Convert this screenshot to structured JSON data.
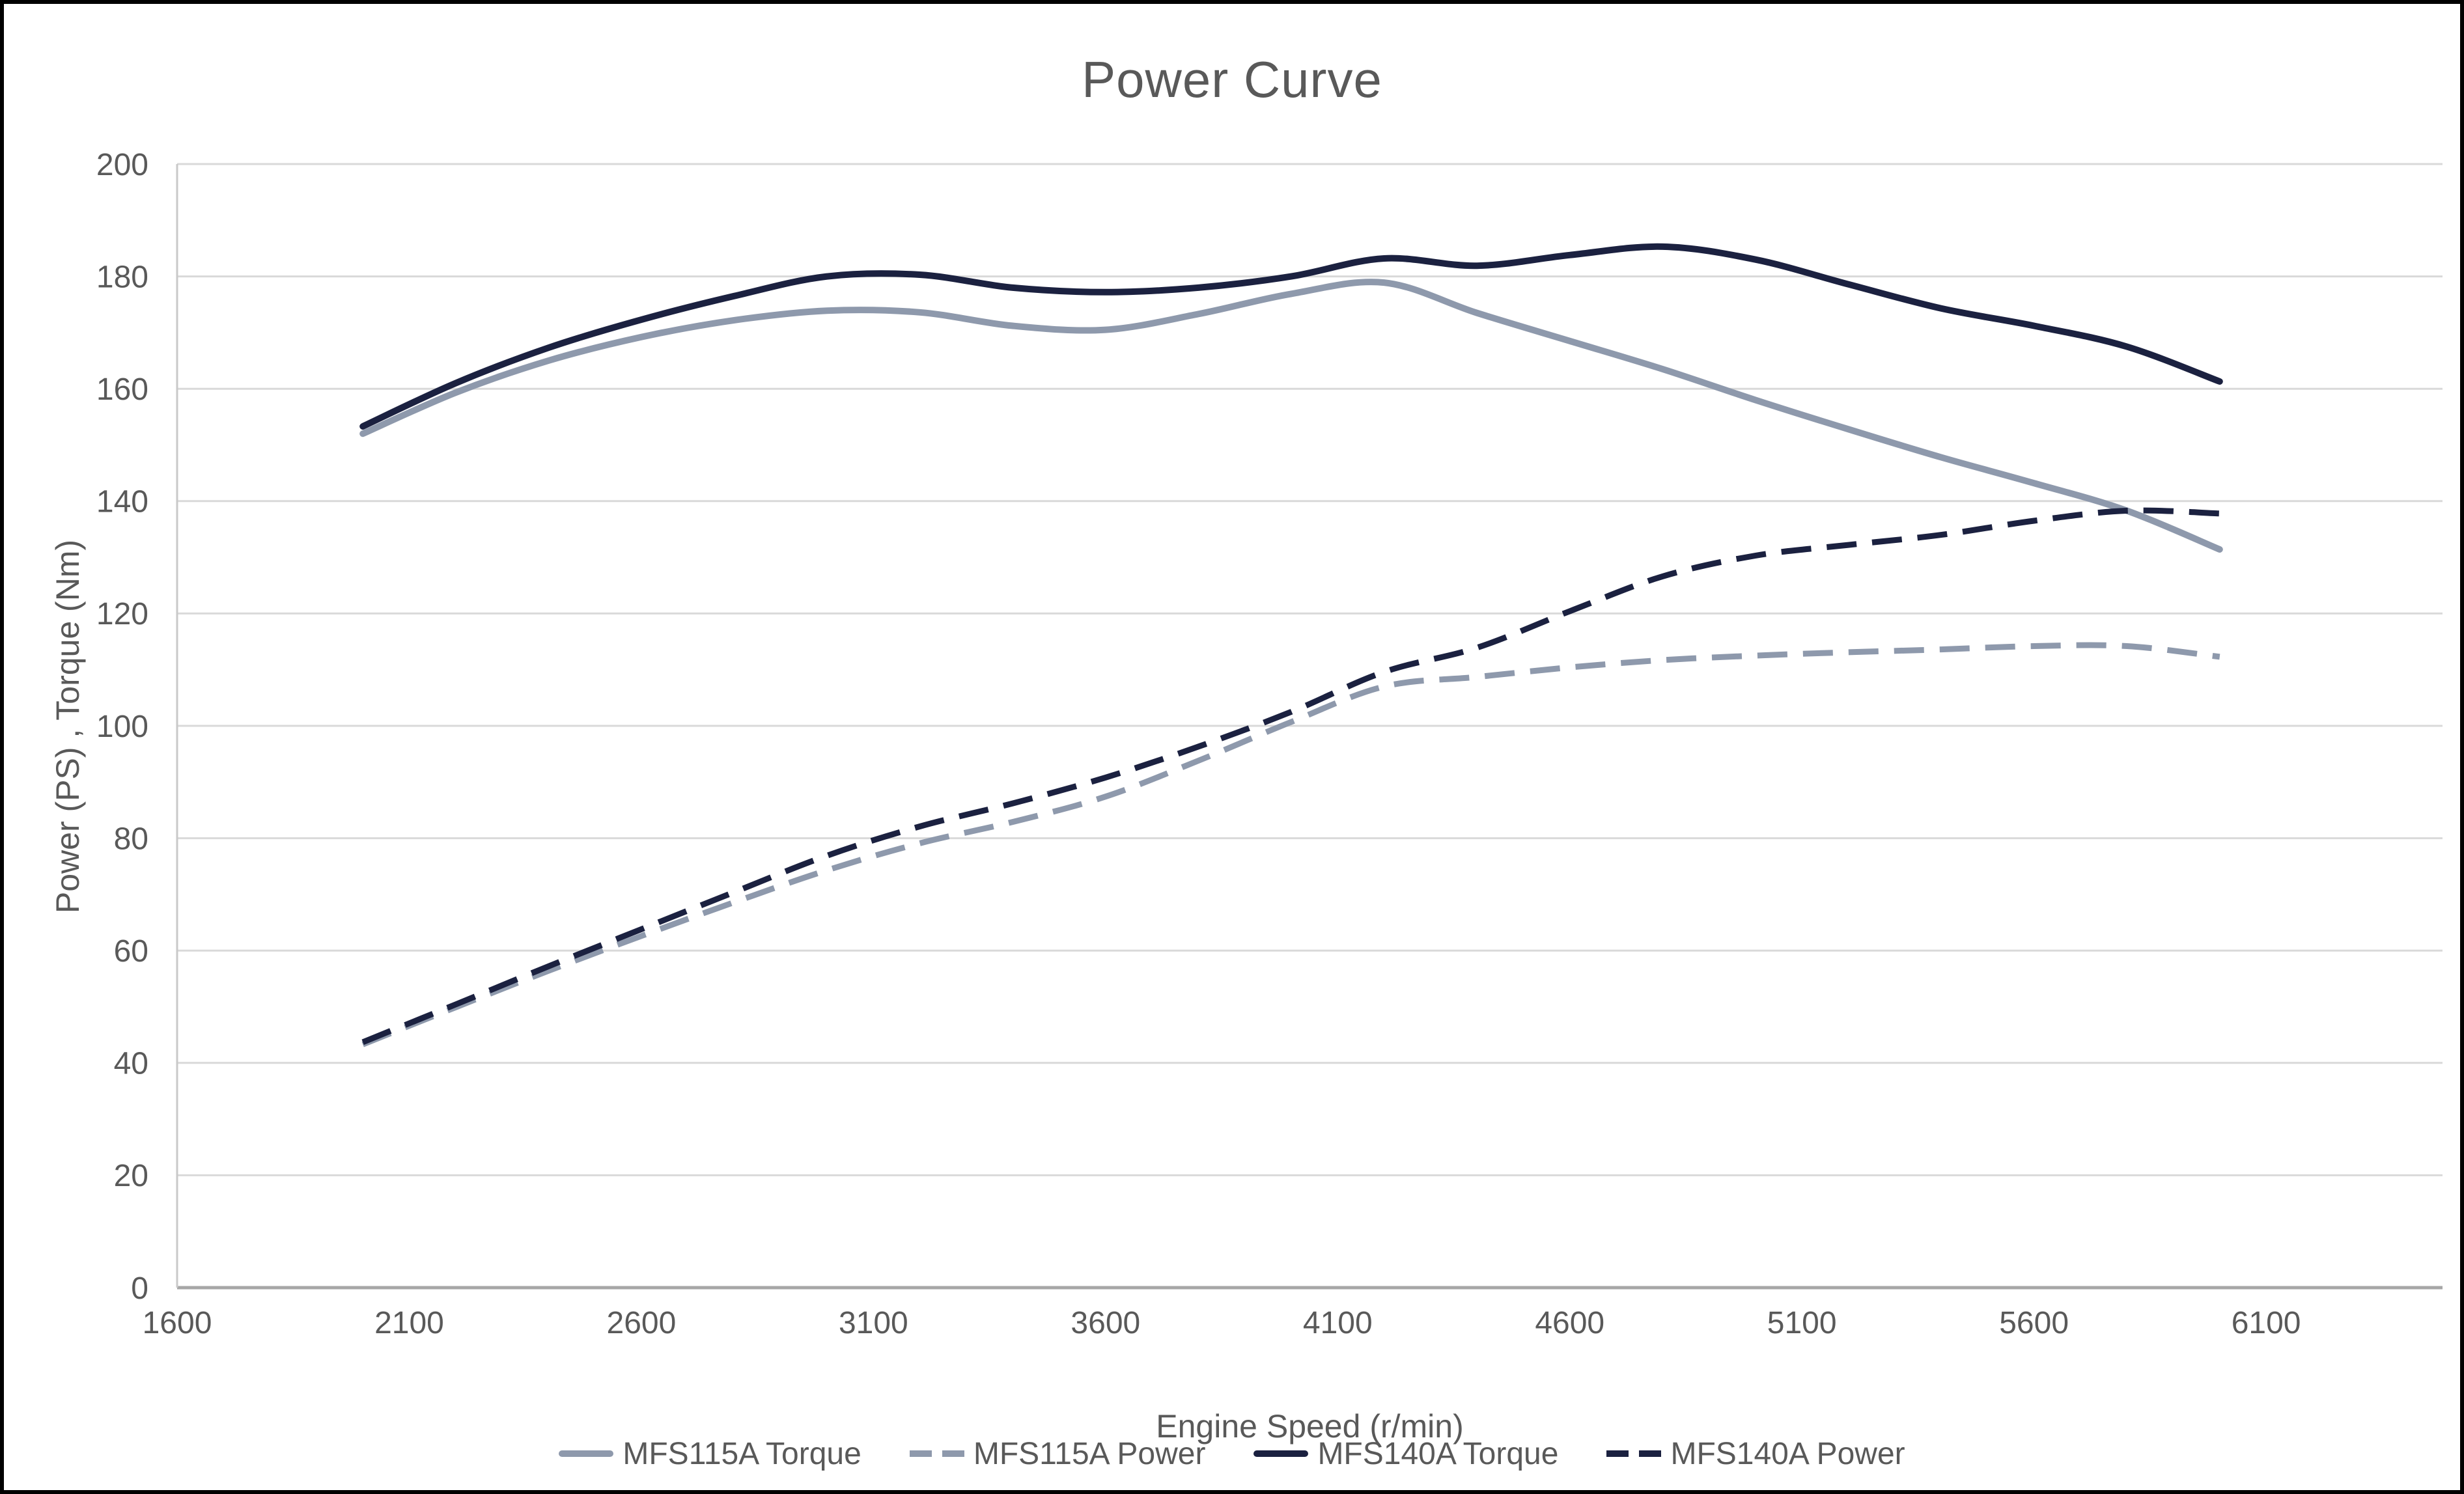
{
  "page": {
    "background": "#ffffff",
    "border_color": "#000000"
  },
  "styles": {
    "title_color": "#595959",
    "tick_label_color": "#595959",
    "gridline_color": "#d9d9d9",
    "y_axis_line_color": "#c9c9c9",
    "x_axis_line_color": "#a6a6a6",
    "series_gray": "#8e99ac",
    "series_navy": "#1b2140"
  },
  "chart_data": {
    "type": "line",
    "title": "Power Curve",
    "xlabel": "Engine Speed (r/min)",
    "ylabel": "Power (PS) , Torque (Nm)",
    "xlim": [
      1600,
      6480
    ],
    "ylim": [
      0,
      200
    ],
    "x_ticks": [
      1600,
      2100,
      2600,
      3100,
      3600,
      4100,
      4600,
      5100,
      5600,
      6100
    ],
    "y_ticks": [
      0,
      20,
      40,
      60,
      80,
      100,
      120,
      140,
      160,
      180,
      200
    ],
    "grid": true,
    "legend_position": "bottom",
    "x": [
      2000,
      2200,
      2400,
      2600,
      2800,
      3000,
      3200,
      3400,
      3600,
      3800,
      4000,
      4200,
      4400,
      4600,
      4800,
      5000,
      5200,
      5400,
      5600,
      5800,
      6000
    ],
    "series": [
      {
        "name": "MFS115A Torque",
        "color": "#8e99ac",
        "dash": "solid",
        "stroke_width": 10,
        "values": [
          152.0,
          159.3,
          165.0,
          169.2,
          172.2,
          173.9,
          173.6,
          171.2,
          170.5,
          173.3,
          176.9,
          178.9,
          173.5,
          168.5,
          163.5,
          158.0,
          152.8,
          147.8,
          143.2,
          138.3,
          131.4
        ]
      },
      {
        "name": "MFS115A Power",
        "color": "#8e99ac",
        "dash": "dashed",
        "stroke_width": 9,
        "values": [
          43.3,
          49.9,
          56.4,
          62.6,
          68.6,
          74.3,
          79.1,
          82.9,
          87.4,
          93.8,
          100.7,
          107.0,
          108.7,
          110.4,
          111.7,
          112.5,
          113.1,
          113.6,
          114.2,
          114.2,
          112.3
        ]
      },
      {
        "name": "MFS140A Torque",
        "color": "#1b2140",
        "dash": "solid",
        "stroke_width": 10,
        "values": [
          153.3,
          161.0,
          167.3,
          172.3,
          176.5,
          180.0,
          180.3,
          178.0,
          177.2,
          178.0,
          180.0,
          183.2,
          181.9,
          183.8,
          185.3,
          183.0,
          178.6,
          174.3,
          171.2,
          167.5,
          161.3
        ]
      },
      {
        "name": "MFS140A Power",
        "color": "#1b2140",
        "dash": "dashed",
        "stroke_width": 9,
        "values": [
          43.7,
          50.4,
          57.2,
          63.8,
          70.4,
          76.9,
          82.1,
          86.2,
          90.8,
          96.3,
          102.5,
          109.6,
          113.9,
          120.4,
          126.6,
          130.3,
          132.2,
          134.0,
          136.5,
          138.3,
          137.8
        ]
      }
    ]
  }
}
